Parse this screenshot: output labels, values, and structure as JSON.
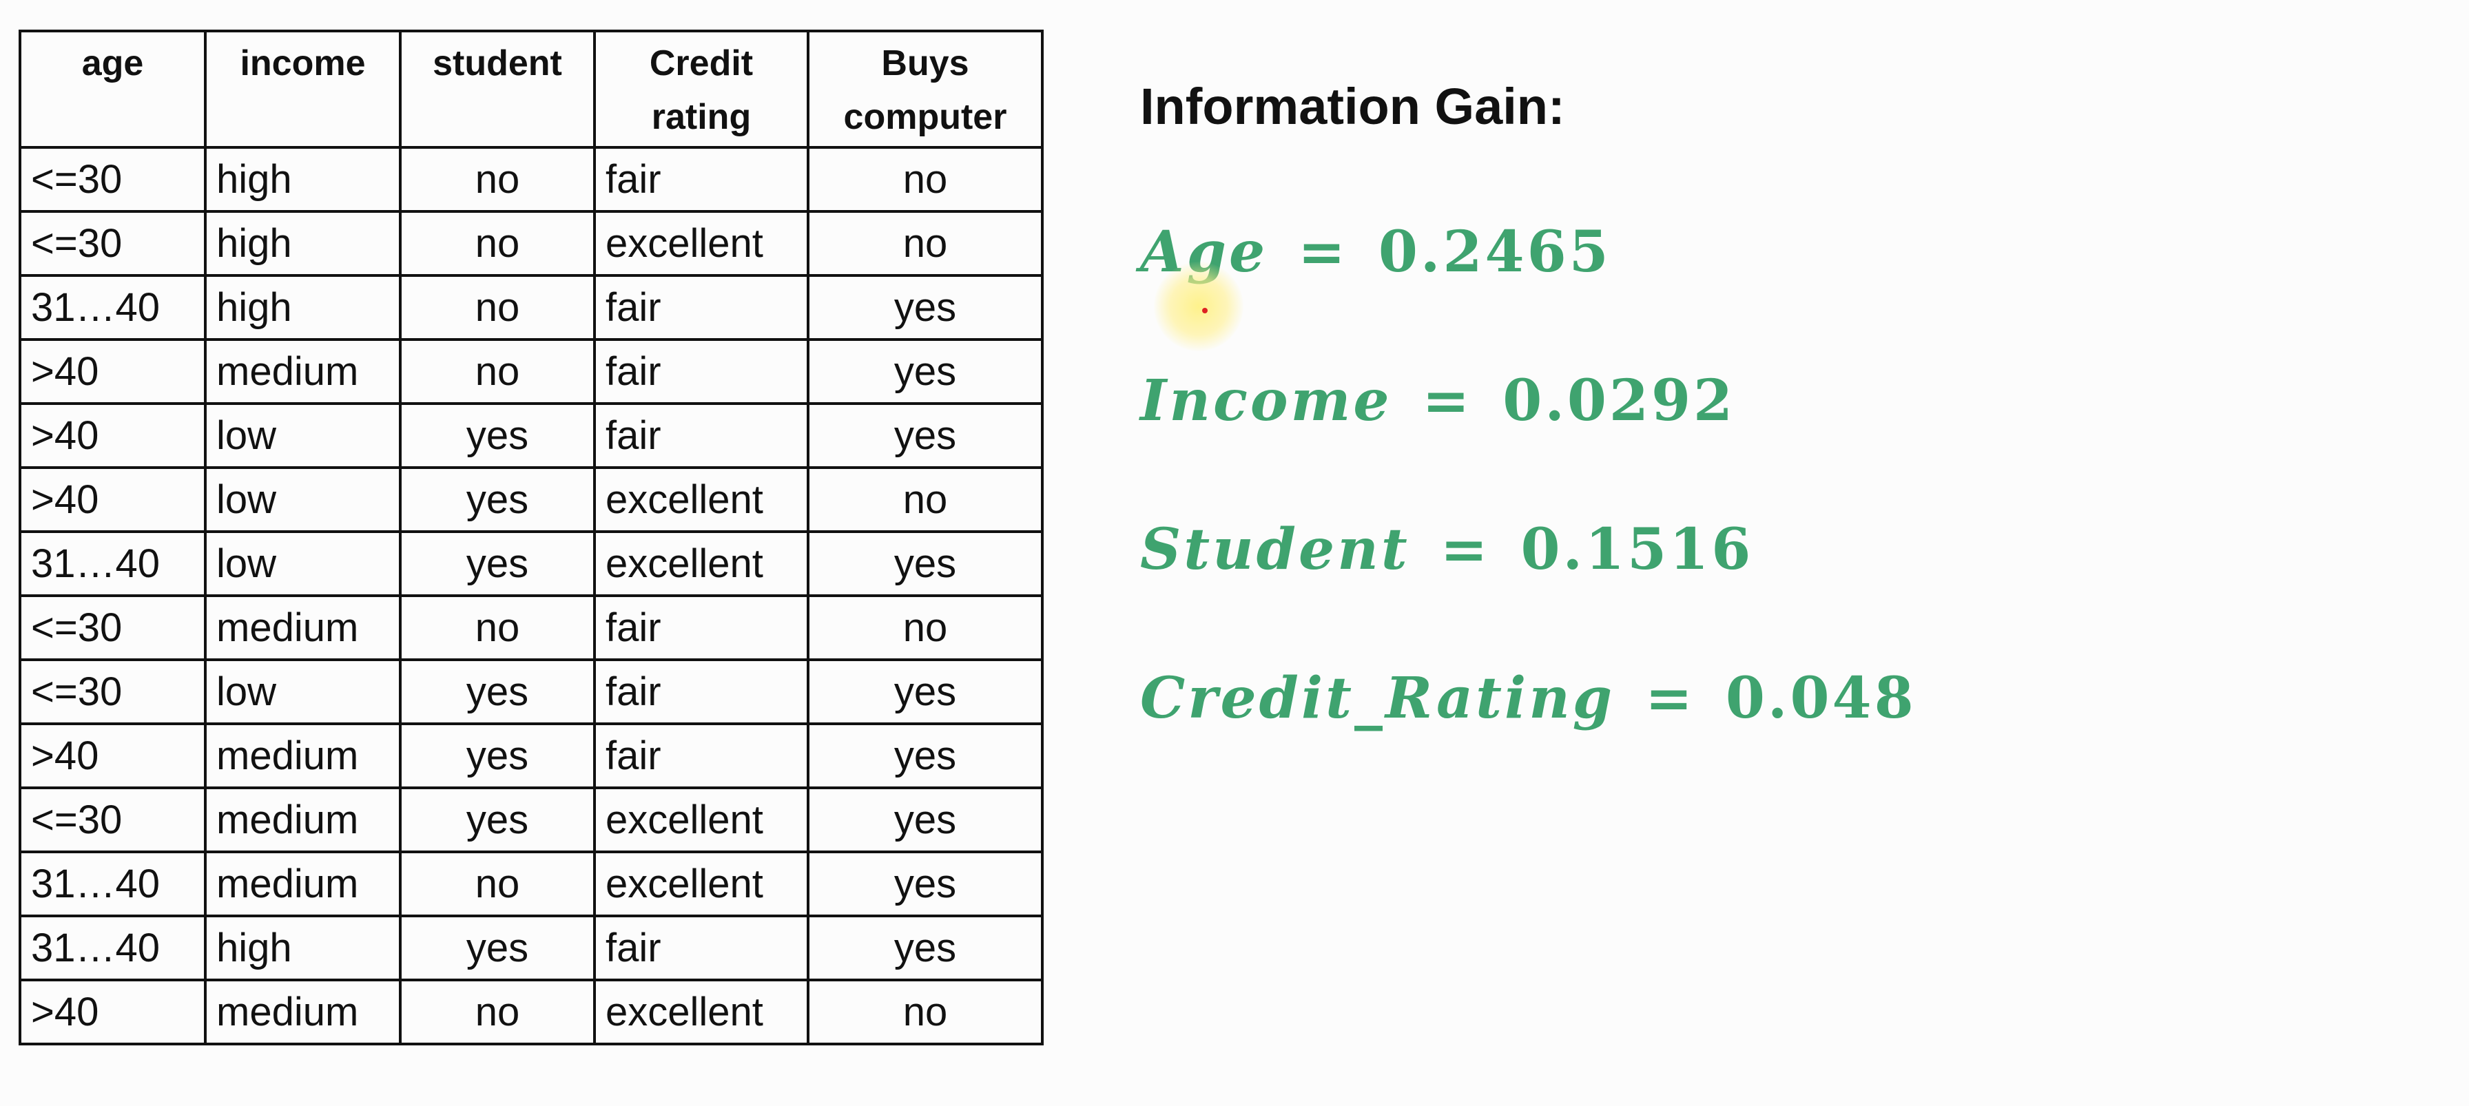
{
  "table": {
    "headers": [
      "age",
      "income",
      "student",
      "Credit rating",
      "Buys computer"
    ],
    "rows": [
      [
        "<=30",
        "high",
        "no",
        "fair",
        "no"
      ],
      [
        "<=30",
        "high",
        "no",
        "excellent",
        "no"
      ],
      [
        "31…40",
        "high",
        "no",
        "fair",
        "yes"
      ],
      [
        ">40",
        "medium",
        "no",
        "fair",
        "yes"
      ],
      [
        ">40",
        "low",
        "yes",
        "fair",
        "yes"
      ],
      [
        ">40",
        "low",
        "yes",
        "excellent",
        "no"
      ],
      [
        "31…40",
        "low",
        "yes",
        "excellent",
        "yes"
      ],
      [
        "<=30",
        "medium",
        "no",
        "fair",
        "no"
      ],
      [
        "<=30",
        "low",
        "yes",
        "fair",
        "yes"
      ],
      [
        ">40",
        "medium",
        "yes",
        "fair",
        "yes"
      ],
      [
        "<=30",
        "medium",
        "yes",
        "excellent",
        "yes"
      ],
      [
        "31…40",
        "medium",
        "no",
        "excellent",
        "yes"
      ],
      [
        "31…40",
        "high",
        "yes",
        "fair",
        "yes"
      ],
      [
        ">40",
        "medium",
        "no",
        "excellent",
        "no"
      ]
    ]
  },
  "gain": {
    "title": "Information Gain:",
    "items": [
      {
        "name": "Age",
        "symbol": "=",
        "value": "0.2465"
      },
      {
        "name": "Income",
        "symbol": "=",
        "value": "0.0292"
      },
      {
        "name": "Student",
        "symbol": "=",
        "value": "0.1516"
      },
      {
        "name": "Credit_Rating",
        "symbol": "=",
        "value": "0.048"
      }
    ],
    "accent_color": "#3fa36f"
  }
}
